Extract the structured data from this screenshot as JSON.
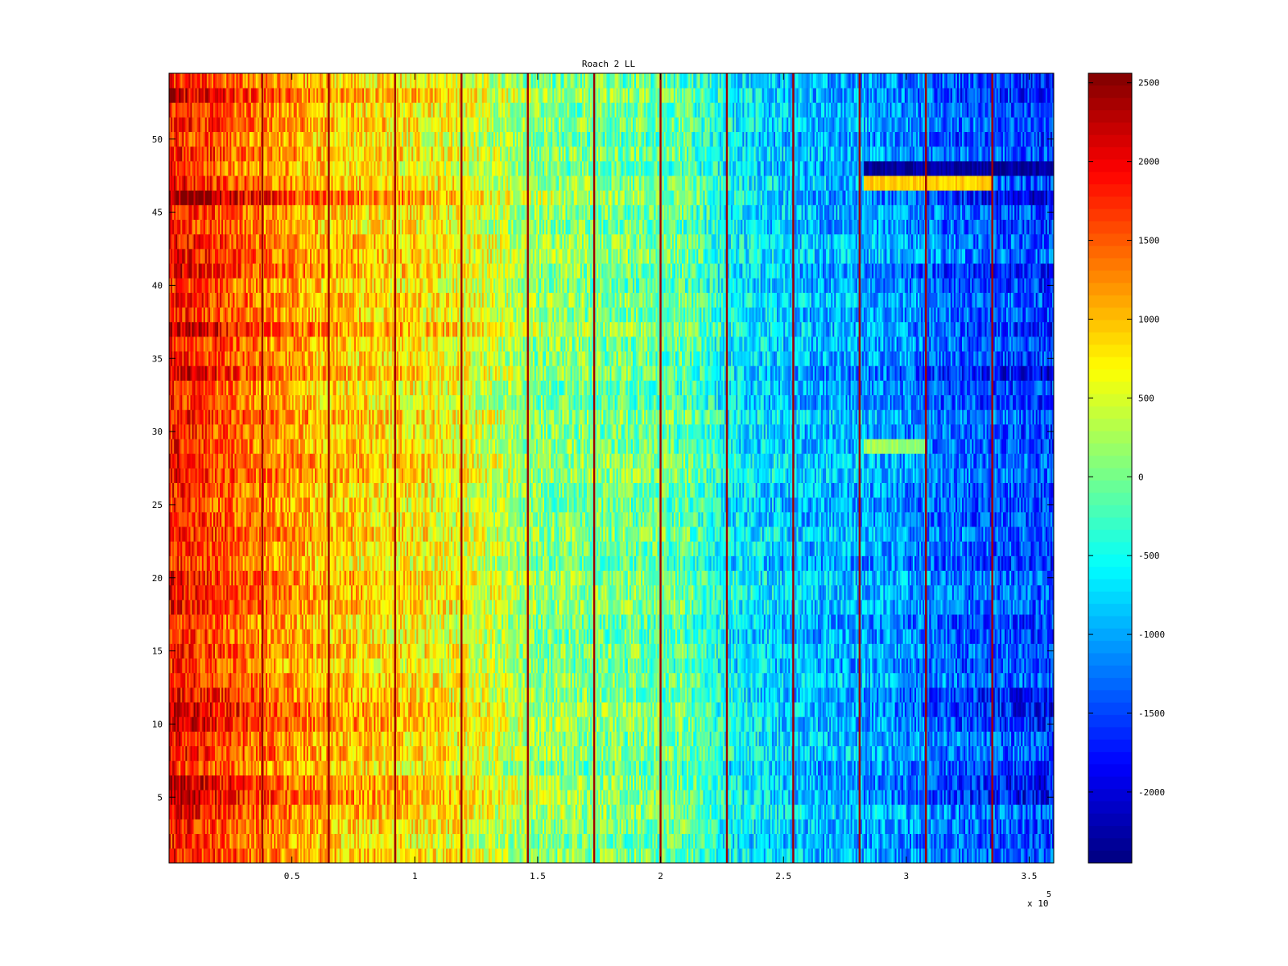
{
  "chart_data": [
    {
      "type": "heatmap",
      "title": "Roach 2 LL",
      "xlabel": "",
      "ylabel": "",
      "x_multiplier": "x 10",
      "x_multiplier_exponent": "5",
      "xlim": [
        0,
        3.6
      ],
      "ylim": [
        0.5,
        54.5
      ],
      "x_ticks": [
        {
          "value": 0.5,
          "label": "0.5"
        },
        {
          "value": 1,
          "label": "1"
        },
        {
          "value": 1.5,
          "label": "1.5"
        },
        {
          "value": 2,
          "label": "2"
        },
        {
          "value": 2.5,
          "label": "2.5"
        },
        {
          "value": 3,
          "label": "3"
        },
        {
          "value": 3.5,
          "label": "3.5"
        }
      ],
      "y_ticks": [
        {
          "value": 5,
          "label": "5"
        },
        {
          "value": 10,
          "label": "10"
        },
        {
          "value": 15,
          "label": "15"
        },
        {
          "value": 20,
          "label": "20"
        },
        {
          "value": 25,
          "label": "25"
        },
        {
          "value": 30,
          "label": "30"
        },
        {
          "value": 35,
          "label": "35"
        },
        {
          "value": 40,
          "label": "40"
        },
        {
          "value": 45,
          "label": "45"
        },
        {
          "value": 50,
          "label": "50"
        }
      ],
      "rows": 54,
      "colormap": "jet",
      "grid": false,
      "trend_by_x": {
        "x": [
          0.0,
          0.3,
          0.6,
          0.9,
          1.2,
          1.5,
          1.8,
          2.1,
          2.3,
          2.6,
          2.9,
          3.2,
          3.6
        ],
        "value": [
          1900,
          1400,
          1000,
          800,
          600,
          100,
          0,
          -100,
          -600,
          -900,
          -1000,
          -1300,
          -1500
        ]
      },
      "vertical_lines_x": [
        0.38,
        0.65,
        0.92,
        1.19,
        1.46,
        1.73,
        2.0,
        2.27,
        2.54,
        2.81,
        3.08,
        3.35
      ],
      "vertical_line_value": 2400,
      "row_offsets": [
        {
          "row": 5,
          "offset": 400
        },
        {
          "row": 6,
          "offset": 350
        },
        {
          "row": 10,
          "offset": 300
        },
        {
          "row": 11,
          "offset": 350
        },
        {
          "row": 12,
          "offset": 250
        },
        {
          "row": 34,
          "offset": 350
        },
        {
          "row": 37,
          "offset": 300
        },
        {
          "row": 41,
          "offset": 300
        },
        {
          "row": 46,
          "offset": 550
        },
        {
          "row": 53,
          "offset": 250
        }
      ],
      "right_band_rows": [
        {
          "row": 47,
          "x_from": 2.83,
          "x_to": 3.35,
          "value": 900
        },
        {
          "row": 48,
          "x_from": 2.83,
          "x_to": 3.6,
          "value": -2300
        },
        {
          "row": 29,
          "x_from": 2.83,
          "x_to": 3.08,
          "value": 200
        }
      ]
    },
    {
      "type": "colorbar",
      "clim": [
        -2450,
        2560
      ],
      "ticks": [
        {
          "value": 2500,
          "label": "2500"
        },
        {
          "value": 2000,
          "label": "2000"
        },
        {
          "value": 1500,
          "label": "1500"
        },
        {
          "value": 1000,
          "label": "1000"
        },
        {
          "value": 500,
          "label": "500"
        },
        {
          "value": 0,
          "label": "0"
        },
        {
          "value": -500,
          "label": "-500"
        },
        {
          "value": -1000,
          "label": "-1000"
        },
        {
          "value": -1500,
          "label": "-1500"
        },
        {
          "value": -2000,
          "label": "-2000"
        }
      ]
    }
  ]
}
